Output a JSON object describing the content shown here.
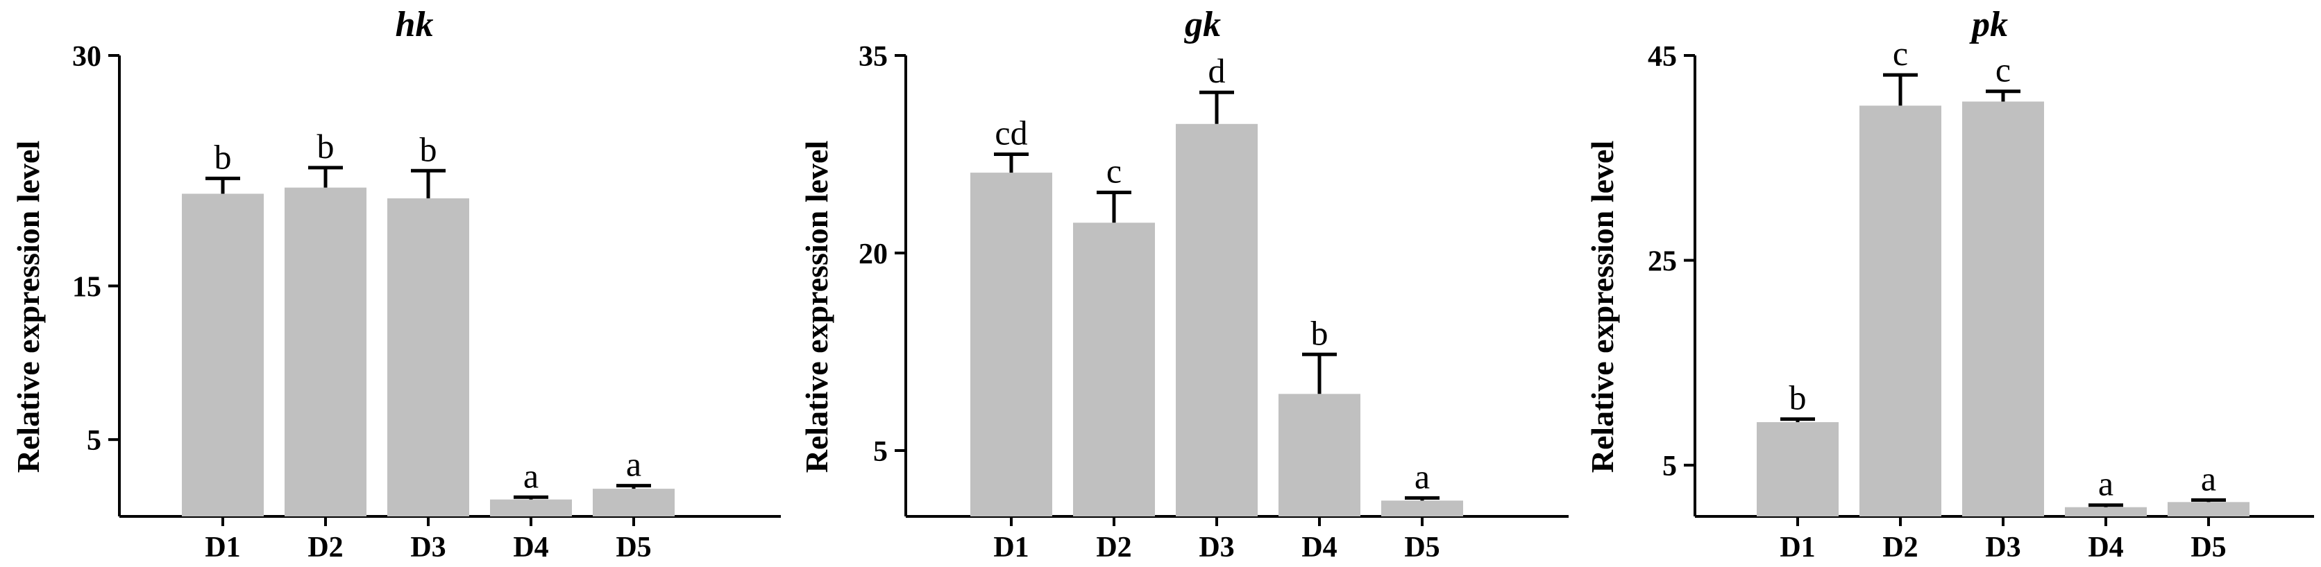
{
  "chart_data": [
    {
      "type": "bar",
      "title": "hk",
      "ylabel": "Relative expression level",
      "xlabel": "",
      "categories": [
        "D1",
        "D2",
        "D3",
        "D4",
        "D5"
      ],
      "values": [
        21.0,
        21.4,
        20.7,
        1.1,
        1.8
      ],
      "errors": [
        1.0,
        1.3,
        1.8,
        0.15,
        0.2
      ],
      "significance": [
        "b",
        "b",
        "b",
        "a",
        "a"
      ],
      "ylim": [
        0,
        30
      ],
      "yticks": [
        5,
        15,
        30
      ],
      "color": "#c0c0c0"
    },
    {
      "type": "bar",
      "title": "gk",
      "ylabel": "Relative expression level",
      "xlabel": "",
      "categories": [
        "D1",
        "D2",
        "D3",
        "D4",
        "D5"
      ],
      "values": [
        26.1,
        22.3,
        29.8,
        9.3,
        1.2
      ],
      "errors": [
        1.4,
        2.3,
        2.4,
        3.0,
        0.2
      ],
      "significance": [
        "cd",
        "c",
        "d",
        "b",
        "a"
      ],
      "ylim": [
        0,
        35
      ],
      "yticks": [
        5,
        20,
        35
      ],
      "color": "#c0c0c0"
    },
    {
      "type": "bar",
      "title": "pk",
      "ylabel": "Relative expression level",
      "xlabel": "",
      "categories": [
        "D1",
        "D2",
        "D3",
        "D4",
        "D5"
      ],
      "values": [
        9.2,
        40.1,
        40.5,
        0.9,
        1.4
      ],
      "errors": [
        0.3,
        3.0,
        1.0,
        0.2,
        0.2
      ],
      "significance": [
        "b",
        "c",
        "c",
        "a",
        "a"
      ],
      "ylim": [
        0,
        45
      ],
      "yticks": [
        5,
        25,
        45
      ],
      "color": "#c0c0c0"
    }
  ]
}
